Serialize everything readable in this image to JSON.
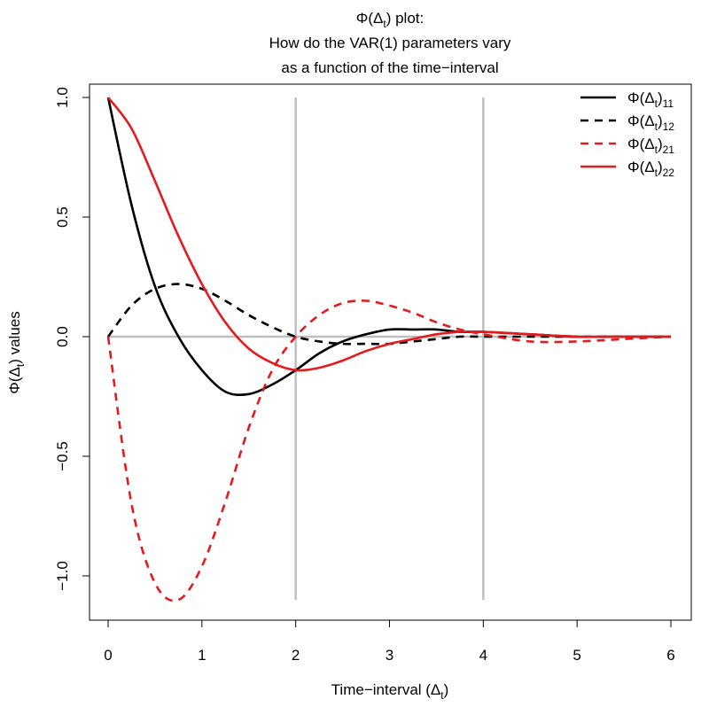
{
  "chart_data": {
    "type": "line",
    "title_lines": [
      {
        "prefix": "Φ(Δ",
        "sub": "t",
        "suffix": ") plot:"
      },
      {
        "prefix": "How do the VAR(1) parameters vary",
        "sub": "",
        "suffix": ""
      },
      {
        "prefix": "as a function of the time−interval",
        "sub": "",
        "suffix": ""
      }
    ],
    "xlabel": {
      "prefix": "Time−interval (Δ",
      "sub": "t",
      "suffix": ")"
    },
    "ylabel": {
      "prefix": "Φ(Δ",
      "sub": "t",
      "suffix": ") values"
    },
    "xlim": [
      0,
      6
    ],
    "ylim": [
      -1.1,
      1.0
    ],
    "xticks": [
      0,
      1,
      2,
      3,
      4,
      5,
      6
    ],
    "xtick_labels": [
      "0",
      "1",
      "2",
      "3",
      "4",
      "5",
      "6"
    ],
    "yticks": [
      -1.0,
      -0.5,
      0.0,
      0.5,
      1.0
    ],
    "ytick_labels": [
      "−1.0",
      "−0.5",
      "0.0",
      "0.5",
      "1.0"
    ],
    "legend_position": "top-right",
    "colors": {
      "black": "#000000",
      "red": "#e41a1c",
      "grey": "#bebebe"
    },
    "reference_lines": {
      "horizontal_y": 0,
      "vertical_x": [
        2,
        4
      ]
    },
    "x": [
      0,
      0.25,
      0.5,
      0.75,
      1.0,
      1.25,
      1.5,
      1.75,
      2.0,
      2.25,
      2.5,
      2.75,
      3.0,
      3.25,
      3.5,
      3.75,
      4.0,
      4.5,
      5.0,
      5.5,
      6.0
    ],
    "series": [
      {
        "name": {
          "prefix": "Φ(Δ",
          "sub": "t",
          "suffix": ")",
          "index": "11"
        },
        "color": "#000000",
        "dash": "solid",
        "values": [
          1.0,
          0.55,
          0.21,
          0.0,
          -0.14,
          -0.23,
          -0.24,
          -0.2,
          -0.14,
          -0.07,
          -0.02,
          0.01,
          0.03,
          0.03,
          0.03,
          0.02,
          0.02,
          0.01,
          0.0,
          0.0,
          0.0
        ]
      },
      {
        "name": {
          "prefix": "Φ(Δ",
          "sub": "t",
          "suffix": ")",
          "index": "12"
        },
        "color": "#000000",
        "dash": "dashed",
        "values": [
          0.0,
          0.13,
          0.2,
          0.22,
          0.2,
          0.15,
          0.09,
          0.04,
          0.0,
          -0.02,
          -0.03,
          -0.03,
          -0.03,
          -0.02,
          -0.01,
          0.0,
          0.0,
          0.0,
          0.0,
          0.0,
          0.0
        ]
      },
      {
        "name": {
          "prefix": "Φ(Δ",
          "sub": "t",
          "suffix": ")",
          "index": "21"
        },
        "color": "#e41a1c",
        "dash": "dashed",
        "values": [
          0.0,
          -0.7,
          -1.03,
          -1.1,
          -0.96,
          -0.69,
          -0.38,
          -0.14,
          0.0,
          0.09,
          0.14,
          0.15,
          0.13,
          0.1,
          0.06,
          0.03,
          0.01,
          -0.02,
          -0.02,
          -0.01,
          0.0
        ]
      },
      {
        "name": {
          "prefix": "Φ(Δ",
          "sub": "t",
          "suffix": ")",
          "index": "22"
        },
        "color": "#e41a1c",
        "dash": "solid",
        "values": [
          1.0,
          0.87,
          0.65,
          0.42,
          0.22,
          0.06,
          -0.05,
          -0.11,
          -0.14,
          -0.13,
          -0.1,
          -0.06,
          -0.03,
          -0.01,
          0.01,
          0.02,
          0.02,
          0.01,
          0.0,
          0.0,
          0.0
        ]
      }
    ]
  }
}
